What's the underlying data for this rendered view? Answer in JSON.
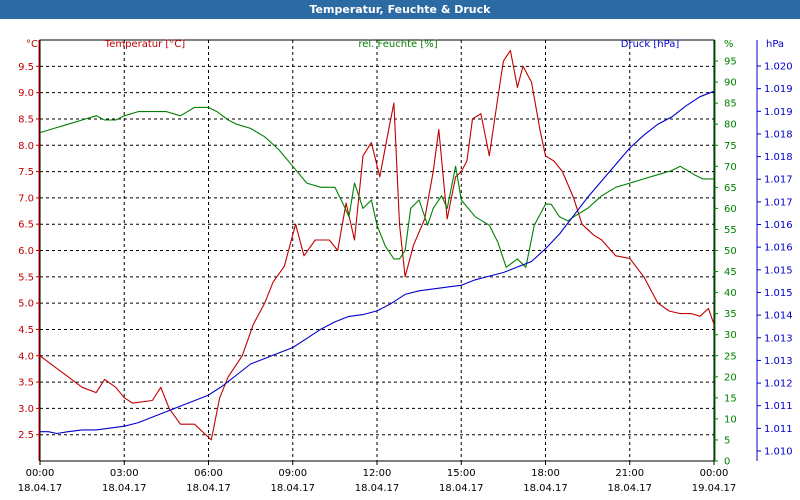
{
  "window": {
    "title": "Temperatur, Feuchte & Druck"
  },
  "chart_data": {
    "type": "line",
    "title": "Temperatur, Feuchte & Druck",
    "x_tick_labels": [
      [
        "00:00",
        "18.04.17"
      ],
      [
        "03:00",
        "18.04.17"
      ],
      [
        "06:00",
        "18.04.17"
      ],
      [
        "09:00",
        "18.04.17"
      ],
      [
        "12:00",
        "18.04.17"
      ],
      [
        "15:00",
        "18.04.17"
      ],
      [
        "18:00",
        "18.04.17"
      ],
      [
        "21:00",
        "18.04.17"
      ],
      [
        "00:00",
        "19.04.17"
      ]
    ],
    "grid": true,
    "axes": {
      "temperature": {
        "unit": "°C",
        "label": "Temperatur [°C]",
        "range": [
          2.0,
          10.0
        ],
        "ticks": [
          "2.5",
          "3.0",
          "3.5",
          "4.0",
          "4.5",
          "5.0",
          "5.5",
          "6.0",
          "6.5",
          "7.0",
          "7.5",
          "8.0",
          "8.5",
          "9.0",
          "9.5"
        ],
        "color": "#c00000"
      },
      "humidity": {
        "unit": "%",
        "label": "rel. Feuchte [%]",
        "range": [
          0,
          100
        ],
        "ticks": [
          "0",
          "5",
          "10",
          "15",
          "20",
          "25",
          "30",
          "35",
          "40",
          "45",
          "50",
          "55",
          "60",
          "65",
          "70",
          "75",
          "80",
          "85",
          "90",
          "95"
        ],
        "color": "#008000"
      },
      "pressure": {
        "unit": "hPa",
        "label": "Druck [hPa]",
        "range": [
          1009.5,
          1021.0
        ],
        "ticks": [
          "1.010",
          "1.011",
          "1.011",
          "1.012",
          "1.013",
          "1.013",
          "1.014",
          "1.015",
          "1.015",
          "1.016",
          "1.016",
          "1.017",
          "1.017",
          "1.018",
          "1.018",
          "1.019",
          "1.019",
          "1.020"
        ],
        "color": "#0000cc"
      }
    },
    "series": [
      {
        "name": "Temperatur [°C]",
        "axis": "temperature",
        "color": "#c00000",
        "points": [
          [
            0,
            4.0
          ],
          [
            0.5,
            3.8
          ],
          [
            1.0,
            3.6
          ],
          [
            1.5,
            3.4
          ],
          [
            2.0,
            3.3
          ],
          [
            2.3,
            3.55
          ],
          [
            2.7,
            3.4
          ],
          [
            3.0,
            3.2
          ],
          [
            3.3,
            3.1
          ],
          [
            4.0,
            3.15
          ],
          [
            4.3,
            3.4
          ],
          [
            4.6,
            3.0
          ],
          [
            5.0,
            2.7
          ],
          [
            5.5,
            2.7
          ],
          [
            5.8,
            2.55
          ],
          [
            6.1,
            2.4
          ],
          [
            6.4,
            3.2
          ],
          [
            6.7,
            3.6
          ],
          [
            7.2,
            4.0
          ],
          [
            7.6,
            4.6
          ],
          [
            8.0,
            5.0
          ],
          [
            8.3,
            5.4
          ],
          [
            8.7,
            5.7
          ],
          [
            9.1,
            6.5
          ],
          [
            9.4,
            5.9
          ],
          [
            9.8,
            6.2
          ],
          [
            10.3,
            6.2
          ],
          [
            10.6,
            6.0
          ],
          [
            10.9,
            6.9
          ],
          [
            11.2,
            6.2
          ],
          [
            11.5,
            7.8
          ],
          [
            11.8,
            8.05
          ],
          [
            12.1,
            7.4
          ],
          [
            12.4,
            8.25
          ],
          [
            12.6,
            8.8
          ],
          [
            12.8,
            6.5
          ],
          [
            13.0,
            5.5
          ],
          [
            13.3,
            6.1
          ],
          [
            13.7,
            6.6
          ],
          [
            14.0,
            7.5
          ],
          [
            14.2,
            8.3
          ],
          [
            14.5,
            6.6
          ],
          [
            14.8,
            7.4
          ],
          [
            15.0,
            7.5
          ],
          [
            15.2,
            7.7
          ],
          [
            15.4,
            8.5
          ],
          [
            15.7,
            8.6
          ],
          [
            16.0,
            7.8
          ],
          [
            16.3,
            8.9
          ],
          [
            16.5,
            9.6
          ],
          [
            16.75,
            9.8
          ],
          [
            17.0,
            9.1
          ],
          [
            17.2,
            9.5
          ],
          [
            17.5,
            9.2
          ],
          [
            17.8,
            8.3
          ],
          [
            18.0,
            7.8
          ],
          [
            18.3,
            7.7
          ],
          [
            18.6,
            7.5
          ],
          [
            19.0,
            7.0
          ],
          [
            19.3,
            6.5
          ],
          [
            19.7,
            6.3
          ],
          [
            20.0,
            6.2
          ],
          [
            20.5,
            5.9
          ],
          [
            21.0,
            5.85
          ],
          [
            21.5,
            5.5
          ],
          [
            22.0,
            5.0
          ],
          [
            22.4,
            4.85
          ],
          [
            22.8,
            4.8
          ],
          [
            23.2,
            4.8
          ],
          [
            23.5,
            4.75
          ],
          [
            23.8,
            4.9
          ],
          [
            24.0,
            4.6
          ]
        ]
      },
      {
        "name": "rel. Feuchte [%]",
        "axis": "humidity",
        "color": "#008000",
        "points": [
          [
            0,
            78
          ],
          [
            0.5,
            79
          ],
          [
            1.0,
            80
          ],
          [
            1.5,
            81
          ],
          [
            2.0,
            82
          ],
          [
            2.3,
            81
          ],
          [
            2.7,
            81
          ],
          [
            3.0,
            82
          ],
          [
            3.5,
            83
          ],
          [
            4.0,
            83
          ],
          [
            4.5,
            83
          ],
          [
            5.0,
            82
          ],
          [
            5.5,
            84
          ],
          [
            6.0,
            84
          ],
          [
            6.3,
            83
          ],
          [
            6.7,
            81
          ],
          [
            7.0,
            80
          ],
          [
            7.5,
            79
          ],
          [
            8.0,
            77
          ],
          [
            8.5,
            74
          ],
          [
            9.0,
            70
          ],
          [
            9.5,
            66
          ],
          [
            10.0,
            65
          ],
          [
            10.5,
            65
          ],
          [
            10.8,
            61
          ],
          [
            11.0,
            58
          ],
          [
            11.2,
            66
          ],
          [
            11.5,
            60
          ],
          [
            11.8,
            62
          ],
          [
            12.0,
            56
          ],
          [
            12.3,
            51
          ],
          [
            12.6,
            48
          ],
          [
            12.8,
            48
          ],
          [
            13.0,
            50
          ],
          [
            13.2,
            60
          ],
          [
            13.5,
            62
          ],
          [
            13.8,
            56
          ],
          [
            14.0,
            60
          ],
          [
            14.3,
            63
          ],
          [
            14.5,
            60
          ],
          [
            14.8,
            70
          ],
          [
            15.0,
            62
          ],
          [
            15.5,
            58
          ],
          [
            16.0,
            56
          ],
          [
            16.3,
            52
          ],
          [
            16.6,
            46
          ],
          [
            17.0,
            48
          ],
          [
            17.3,
            46
          ],
          [
            17.6,
            56
          ],
          [
            18.0,
            61
          ],
          [
            18.2,
            61
          ],
          [
            18.5,
            58
          ],
          [
            18.8,
            57
          ],
          [
            19.0,
            58
          ],
          [
            19.5,
            60
          ],
          [
            20.0,
            63
          ],
          [
            20.5,
            65
          ],
          [
            21.0,
            66
          ],
          [
            21.5,
            67
          ],
          [
            22.0,
            68
          ],
          [
            22.5,
            69
          ],
          [
            22.8,
            70
          ],
          [
            23.3,
            68
          ],
          [
            23.6,
            67
          ],
          [
            24.0,
            67
          ]
        ]
      },
      {
        "name": "Druck [hPa]",
        "axis": "pressure",
        "color": "#0000cc",
        "points": [
          [
            0,
            1010.3
          ],
          [
            0.3,
            1010.3
          ],
          [
            0.6,
            1010.25
          ],
          [
            1.0,
            1010.3
          ],
          [
            1.5,
            1010.35
          ],
          [
            2.0,
            1010.35
          ],
          [
            2.5,
            1010.4
          ],
          [
            3.0,
            1010.45
          ],
          [
            3.5,
            1010.55
          ],
          [
            4.0,
            1010.7
          ],
          [
            4.5,
            1010.85
          ],
          [
            5.0,
            1011.0
          ],
          [
            5.5,
            1011.15
          ],
          [
            6.0,
            1011.3
          ],
          [
            6.5,
            1011.55
          ],
          [
            7.0,
            1011.85
          ],
          [
            7.5,
            1012.15
          ],
          [
            8.0,
            1012.3
          ],
          [
            8.5,
            1012.45
          ],
          [
            9.0,
            1012.6
          ],
          [
            9.5,
            1012.85
          ],
          [
            10.0,
            1013.1
          ],
          [
            10.5,
            1013.3
          ],
          [
            11.0,
            1013.45
          ],
          [
            11.5,
            1013.5
          ],
          [
            12.0,
            1013.6
          ],
          [
            12.5,
            1013.8
          ],
          [
            13.0,
            1014.05
          ],
          [
            13.5,
            1014.15
          ],
          [
            14.0,
            1014.2
          ],
          [
            14.5,
            1014.25
          ],
          [
            15.0,
            1014.3
          ],
          [
            15.5,
            1014.45
          ],
          [
            16.0,
            1014.55
          ],
          [
            16.5,
            1014.65
          ],
          [
            17.0,
            1014.8
          ],
          [
            17.5,
            1014.95
          ],
          [
            18.0,
            1015.3
          ],
          [
            18.5,
            1015.7
          ],
          [
            19.0,
            1016.2
          ],
          [
            19.5,
            1016.7
          ],
          [
            20.0,
            1017.15
          ],
          [
            20.5,
            1017.6
          ],
          [
            21.0,
            1018.05
          ],
          [
            21.5,
            1018.4
          ],
          [
            22.0,
            1018.7
          ],
          [
            22.5,
            1018.9
          ],
          [
            23.0,
            1019.2
          ],
          [
            23.5,
            1019.45
          ],
          [
            24.0,
            1019.6
          ]
        ]
      }
    ]
  }
}
